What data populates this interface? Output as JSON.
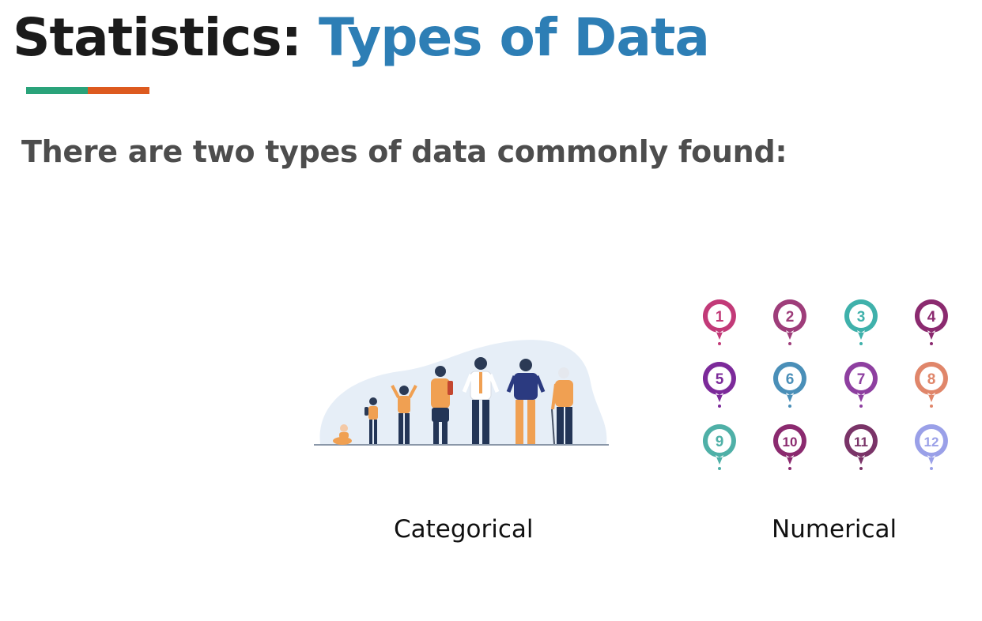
{
  "title": {
    "part1": "Statistics:",
    "part2": "Types of Data"
  },
  "accent": {
    "left_color": "#2aa37a",
    "right_color": "#dd5a1f"
  },
  "subtitle": "There are two types of data commonly found:",
  "categorical": {
    "caption": "Categorical",
    "icon": "people-growth-illustration"
  },
  "numerical": {
    "caption": "Numerical",
    "icon": "number-pins",
    "pins": [
      {
        "label": "1",
        "color": "#c23a78"
      },
      {
        "label": "2",
        "color": "#9e3d7a"
      },
      {
        "label": "3",
        "color": "#3fb1ab"
      },
      {
        "label": "4",
        "color": "#8b2a6f"
      },
      {
        "label": "5",
        "color": "#7c2a9a"
      },
      {
        "label": "6",
        "color": "#4a8fb8"
      },
      {
        "label": "7",
        "color": "#8e3fa0"
      },
      {
        "label": "8",
        "color": "#e0866a"
      },
      {
        "label": "9",
        "color": "#4fb0a7"
      },
      {
        "label": "10",
        "color": "#8b2a6f"
      },
      {
        "label": "11",
        "color": "#7a3468"
      },
      {
        "label": "12",
        "color": "#9aa0e8"
      }
    ]
  }
}
